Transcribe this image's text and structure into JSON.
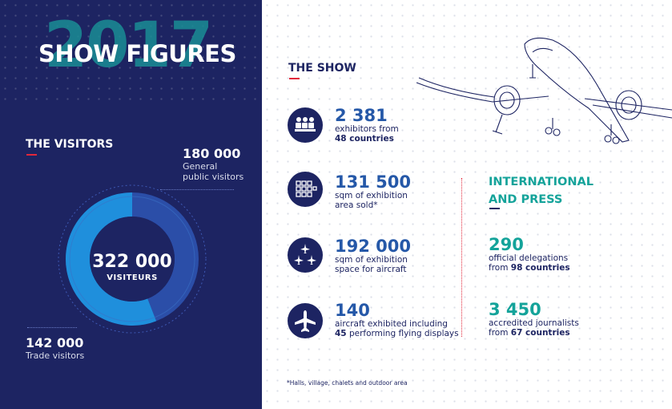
{
  "header": {
    "year": "2017",
    "title": "SHOW FIGURES"
  },
  "visitors": {
    "heading": "THE VISITORS",
    "total": {
      "value": "322 000",
      "label": "VISITEURS"
    },
    "general": {
      "value": "180 000",
      "label_line1": "General",
      "label_line2": "public visitors"
    },
    "trade": {
      "value": "142 000",
      "label": "Trade visitors"
    }
  },
  "show": {
    "heading": "THE SHOW",
    "items": [
      {
        "icon": "exhibitors-icon",
        "value": "2 381",
        "line1": "exhibitors from",
        "line2_bold": "48 countries"
      },
      {
        "icon": "exhibition-area-icon",
        "value": "131 500",
        "line1": "sqm of exhibition",
        "line2": "area sold*"
      },
      {
        "icon": "aircraft-space-icon",
        "value": "192 000",
        "line1": "sqm of exhibition",
        "line2": "space for aircraft"
      },
      {
        "icon": "aircraft-icon",
        "value": "140",
        "line1": "aircraft exhibited including",
        "line2_bold": "45",
        "line2_rest": " performing flying displays"
      }
    ],
    "footnote": "*Halls, village, chalets and outdoor area"
  },
  "international": {
    "heading_line1": "INTERNATIONAL",
    "heading_line2": "AND PRESS",
    "delegations": {
      "value": "290",
      "line1": "official delegations",
      "line2_prefix": "from ",
      "line2_bold": "98 countries"
    },
    "journalists": {
      "value": "3 450",
      "line1": "accredited journalists",
      "line2_prefix": "from ",
      "line2_bold": "67 countries"
    }
  },
  "colors": {
    "navy": "#1d2462",
    "blue": "#2558a8",
    "teal": "#14a39a",
    "red": "#e2283b",
    "donut_light": "#1f8fdc",
    "donut_dark": "#2b4ea8"
  }
}
